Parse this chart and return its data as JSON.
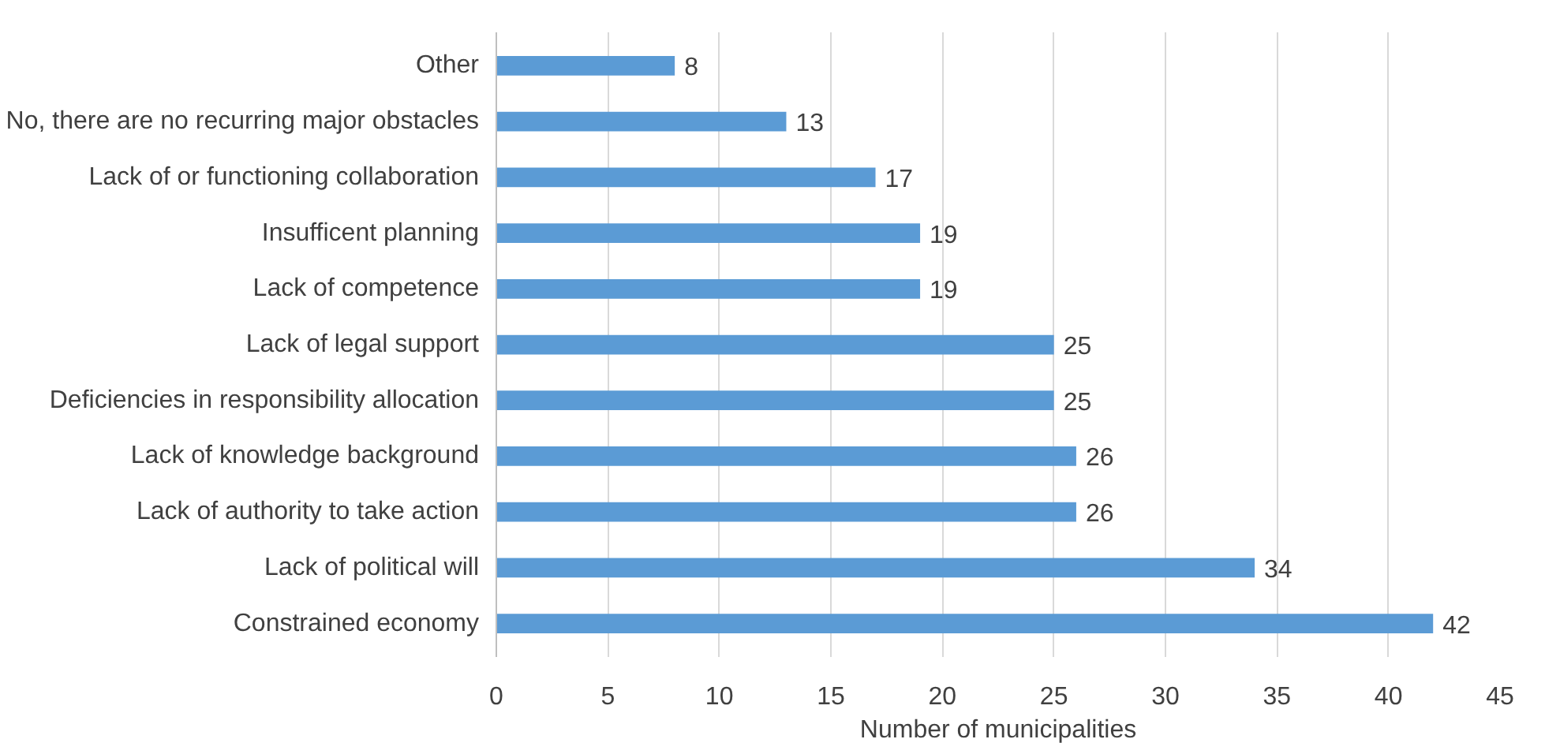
{
  "chart_data": {
    "type": "bar",
    "orientation": "horizontal",
    "xlabel": "Number of municipalities",
    "categories": [
      "Other",
      "No, there are no recurring major obstacles",
      "Lack of or functioning collaboration",
      "Insufficent planning",
      "Lack of competence",
      "Lack of legal support",
      "Deficiencies in responsibility allocation",
      "Lack of knowledge background",
      "Lack of authority to take action",
      "Lack of political will",
      "Constrained economy"
    ],
    "values": [
      8,
      13,
      17,
      19,
      19,
      25,
      25,
      26,
      26,
      34,
      42
    ],
    "color": "#5b9bd5",
    "xlim": [
      0,
      45
    ],
    "xticks": [
      0,
      5,
      10,
      15,
      20,
      25,
      30,
      35,
      40,
      45
    ],
    "grid": "x",
    "data_labels": true
  }
}
